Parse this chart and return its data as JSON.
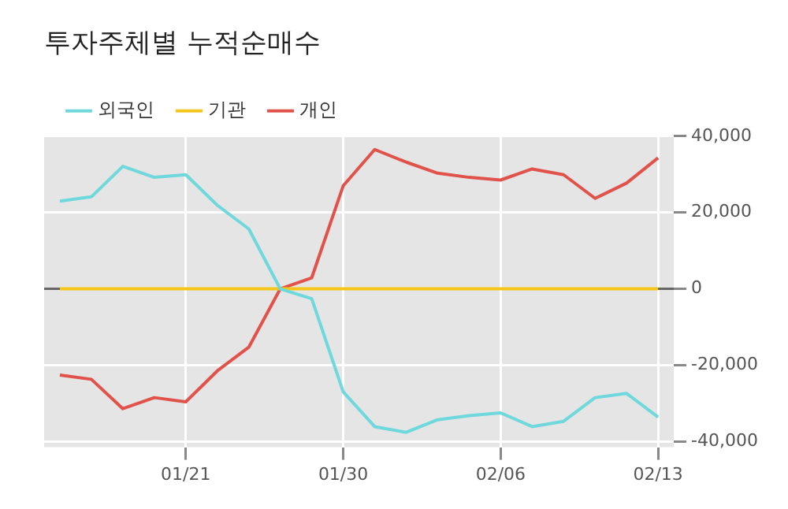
{
  "chart_data": {
    "type": "line",
    "title": "투자주체별 누적순매수",
    "categories": [
      null,
      null,
      null,
      null,
      "01/21",
      null,
      null,
      null,
      null,
      "01/30",
      null,
      null,
      null,
      null,
      "02/06",
      null,
      null,
      null,
      null,
      "02/13"
    ],
    "series": [
      {
        "name": "외국인",
        "color": "#6fd8dc",
        "values": [
          23000,
          24100,
          32100,
          29200,
          29900,
          21900,
          15700,
          0,
          -2600,
          -27000,
          -36100,
          -37600,
          -34300,
          -33200,
          -32500,
          -36100,
          -34700,
          -28500,
          -27400,
          -33600
        ]
      },
      {
        "name": "기관",
        "color": "#f5c518",
        "values": [
          0,
          0,
          0,
          0,
          0,
          0,
          0,
          0,
          0,
          0,
          0,
          0,
          0,
          0,
          0,
          0,
          0,
          0,
          0,
          0
        ]
      },
      {
        "name": "개인",
        "color": "#e0524a",
        "values": [
          -22600,
          -23700,
          -31400,
          -28500,
          -29600,
          -21500,
          -15300,
          0,
          2900,
          27000,
          36500,
          33200,
          30300,
          29200,
          28500,
          31400,
          29900,
          23700,
          27700,
          34300
        ]
      }
    ],
    "ylim": [
      -41500,
      40000
    ],
    "yticks": [
      {
        "value": -40000,
        "label": "-40,000"
      },
      {
        "value": -20000,
        "label": "-20,000"
      },
      {
        "value": 0,
        "label": "0"
      },
      {
        "value": 20000,
        "label": "20,000"
      },
      {
        "value": 40000,
        "label": "40,000"
      }
    ],
    "ref_lines": [
      {
        "axis": "y",
        "value": 0,
        "color": "#666666"
      }
    ],
    "grid": true,
    "legend": "top left",
    "marker": "none",
    "line_style": "solid"
  }
}
